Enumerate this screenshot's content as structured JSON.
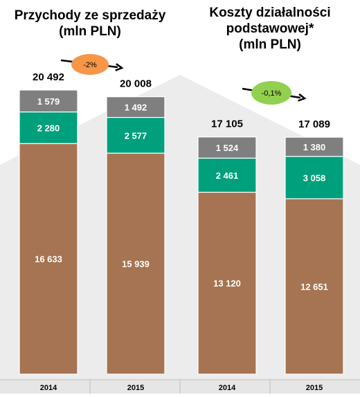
{
  "chart_data": [
    {
      "type": "bar",
      "stacked": true,
      "title_lines": [
        "Przychody ze sprzedaży",
        "(mln PLN)"
      ],
      "categories": [
        "2014",
        "2015"
      ],
      "series": [
        {
          "values": [
            16633,
            15939
          ],
          "labels": [
            "16 633",
            "15 939"
          ]
        },
        {
          "values": [
            2280,
            2577
          ],
          "labels": [
            "2 280",
            "2 577"
          ]
        },
        {
          "values": [
            1579,
            1492
          ],
          "labels": [
            "1 579",
            "1 492"
          ]
        }
      ],
      "totals": [
        "20 492",
        "20 008"
      ],
      "change": "-2%"
    },
    {
      "type": "bar",
      "stacked": true,
      "title_lines": [
        "Koszty działalności",
        "podstawowej*",
        "(mln PLN)"
      ],
      "categories": [
        "2014",
        "2015"
      ],
      "series": [
        {
          "values": [
            13120,
            12651
          ],
          "labels": [
            "13 120",
            "12 651"
          ]
        },
        {
          "values": [
            2461,
            3058
          ],
          "labels": [
            "2 461",
            "3 058"
          ]
        },
        {
          "values": [
            1524,
            1380
          ],
          "labels": [
            "1 524",
            "1 380"
          ]
        }
      ],
      "totals": [
        "17 105",
        "17 089"
      ],
      "change": "-0,1%"
    }
  ],
  "colors": {
    "segment_base": "#a67452",
    "segment_middle": "#00a07c",
    "segment_top": "#7f7f7f",
    "background_shape": "#ececec",
    "badge_revenue": "#f79646",
    "badge_costs": "#92d050",
    "axis_band": "#e6e6e6",
    "text": "#000000",
    "segment_text": "#ffffff"
  }
}
